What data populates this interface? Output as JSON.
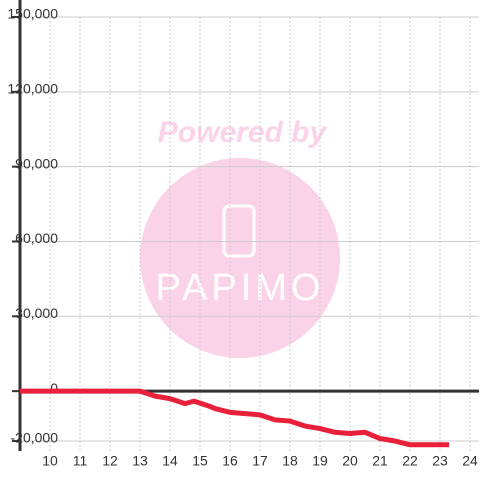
{
  "chart_data": {
    "type": "line",
    "watermark": [
      "Powered by",
      "PAPIMO"
    ],
    "x": [
      9,
      13,
      13.5,
      14,
      14.5,
      14.8,
      15.3,
      15.5,
      16,
      16.5,
      17,
      17.5,
      18,
      18.5,
      19,
      19.5,
      20,
      20.5,
      21,
      21.5,
      22,
      22.5,
      23.3
    ],
    "series": [
      {
        "color": "#e8203a",
        "values": [
          0,
          0,
          -2000,
          -3000,
          -5000,
          -4000,
          -6000,
          -7000,
          -8500,
          -9000,
          -9500,
          -11500,
          -12000,
          -14000,
          -15000,
          -16500,
          -17000,
          -16500,
          -19000,
          -20000,
          -21500,
          -21500,
          -21500
        ]
      }
    ],
    "xlim": [
      9,
      24.3
    ],
    "xticks": [
      10,
      11,
      12,
      13,
      14,
      15,
      16,
      17,
      18,
      19,
      20,
      21,
      22,
      23,
      24
    ],
    "ylim": [
      -24000,
      150000
    ],
    "yticks": [
      {
        "value": -20000,
        "label": "-20,000"
      },
      0,
      {
        "value": 30000,
        "label": "30,000"
      },
      {
        "value": 60000,
        "label": "60,000"
      },
      {
        "value": 90000,
        "label": "90,000"
      },
      {
        "value": 120000,
        "label": "120,000"
      },
      {
        "value": 150000,
        "label": "150,000"
      }
    ],
    "grid": true
  }
}
